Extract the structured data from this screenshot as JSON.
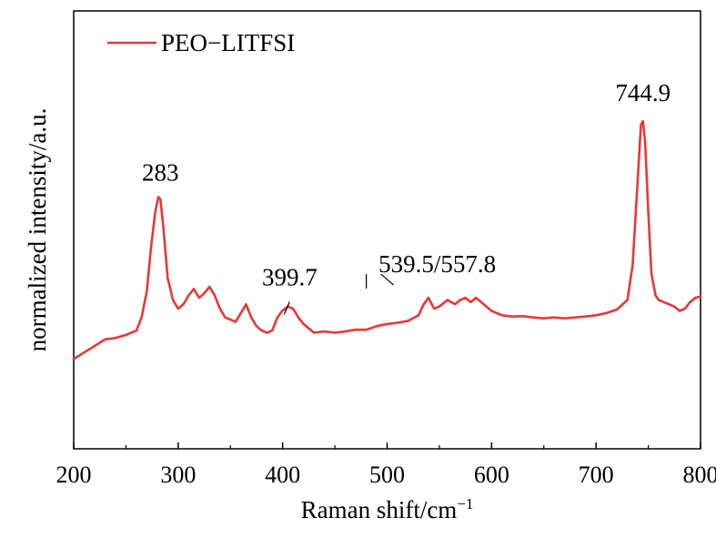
{
  "chart_data": {
    "type": "line",
    "title": "",
    "xlabel": "Raman shift/cm",
    "xlabel_sup": "−1",
    "ylabel": "normalized intensity/a.u.",
    "xlim": [
      200,
      800
    ],
    "ylim": [
      0,
      1
    ],
    "x_ticks": [
      "200",
      "300",
      "400",
      "500",
      "600",
      "700",
      "800"
    ],
    "grid": false,
    "legend_position": "top-left",
    "series": [
      {
        "name": "PEO−LITFSI",
        "color": "#e8373a",
        "points": [
          [
            200,
            0.205
          ],
          [
            210,
            0.22
          ],
          [
            220,
            0.235
          ],
          [
            230,
            0.25
          ],
          [
            240,
            0.253
          ],
          [
            250,
            0.26
          ],
          [
            260,
            0.27
          ],
          [
            265,
            0.3
          ],
          [
            270,
            0.36
          ],
          [
            274,
            0.46
          ],
          [
            278,
            0.54
          ],
          [
            281,
            0.575
          ],
          [
            283,
            0.57
          ],
          [
            286,
            0.5
          ],
          [
            290,
            0.39
          ],
          [
            295,
            0.34
          ],
          [
            300,
            0.32
          ],
          [
            305,
            0.33
          ],
          [
            310,
            0.35
          ],
          [
            315,
            0.365
          ],
          [
            320,
            0.345
          ],
          [
            325,
            0.355
          ],
          [
            330,
            0.37
          ],
          [
            335,
            0.35
          ],
          [
            340,
            0.32
          ],
          [
            345,
            0.3
          ],
          [
            350,
            0.295
          ],
          [
            355,
            0.29
          ],
          [
            360,
            0.31
          ],
          [
            365,
            0.33
          ],
          [
            370,
            0.3
          ],
          [
            375,
            0.28
          ],
          [
            380,
            0.27
          ],
          [
            385,
            0.265
          ],
          [
            390,
            0.27
          ],
          [
            395,
            0.3
          ],
          [
            399.7,
            0.315
          ],
          [
            405,
            0.325
          ],
          [
            410,
            0.32
          ],
          [
            415,
            0.3
          ],
          [
            420,
            0.285
          ],
          [
            425,
            0.275
          ],
          [
            430,
            0.265
          ],
          [
            440,
            0.268
          ],
          [
            450,
            0.265
          ],
          [
            460,
            0.268
          ],
          [
            470,
            0.272
          ],
          [
            480,
            0.272
          ],
          [
            490,
            0.28
          ],
          [
            500,
            0.285
          ],
          [
            510,
            0.288
          ],
          [
            520,
            0.292
          ],
          [
            530,
            0.305
          ],
          [
            535,
            0.33
          ],
          [
            539.5,
            0.345
          ],
          [
            545,
            0.32
          ],
          [
            550,
            0.325
          ],
          [
            557.8,
            0.34
          ],
          [
            565,
            0.33
          ],
          [
            570,
            0.34
          ],
          [
            575,
            0.345
          ],
          [
            580,
            0.335
          ],
          [
            585,
            0.345
          ],
          [
            590,
            0.335
          ],
          [
            600,
            0.315
          ],
          [
            610,
            0.305
          ],
          [
            620,
            0.302
          ],
          [
            630,
            0.303
          ],
          [
            640,
            0.3
          ],
          [
            650,
            0.298
          ],
          [
            660,
            0.3
          ],
          [
            670,
            0.298
          ],
          [
            680,
            0.3
          ],
          [
            690,
            0.302
          ],
          [
            700,
            0.305
          ],
          [
            710,
            0.31
          ],
          [
            720,
            0.318
          ],
          [
            730,
            0.34
          ],
          [
            735,
            0.42
          ],
          [
            740,
            0.62
          ],
          [
            743,
            0.74
          ],
          [
            744.9,
            0.748
          ],
          [
            747,
            0.7
          ],
          [
            750,
            0.54
          ],
          [
            753,
            0.4
          ],
          [
            757,
            0.35
          ],
          [
            760,
            0.34
          ],
          [
            765,
            0.335
          ],
          [
            770,
            0.33
          ],
          [
            775,
            0.325
          ],
          [
            780,
            0.315
          ],
          [
            785,
            0.32
          ],
          [
            790,
            0.335
          ],
          [
            795,
            0.345
          ],
          [
            800,
            0.348
          ]
        ]
      }
    ],
    "annotations": [
      {
        "text": "283",
        "x": 283,
        "y": 0.575
      },
      {
        "text": "399.7",
        "x": 399.7,
        "y": 0.315
      },
      {
        "text": "539.5/557.8",
        "x": 548,
        "y": 0.345
      },
      {
        "text": "744.9",
        "x": 744.9,
        "y": 0.748
      }
    ]
  }
}
